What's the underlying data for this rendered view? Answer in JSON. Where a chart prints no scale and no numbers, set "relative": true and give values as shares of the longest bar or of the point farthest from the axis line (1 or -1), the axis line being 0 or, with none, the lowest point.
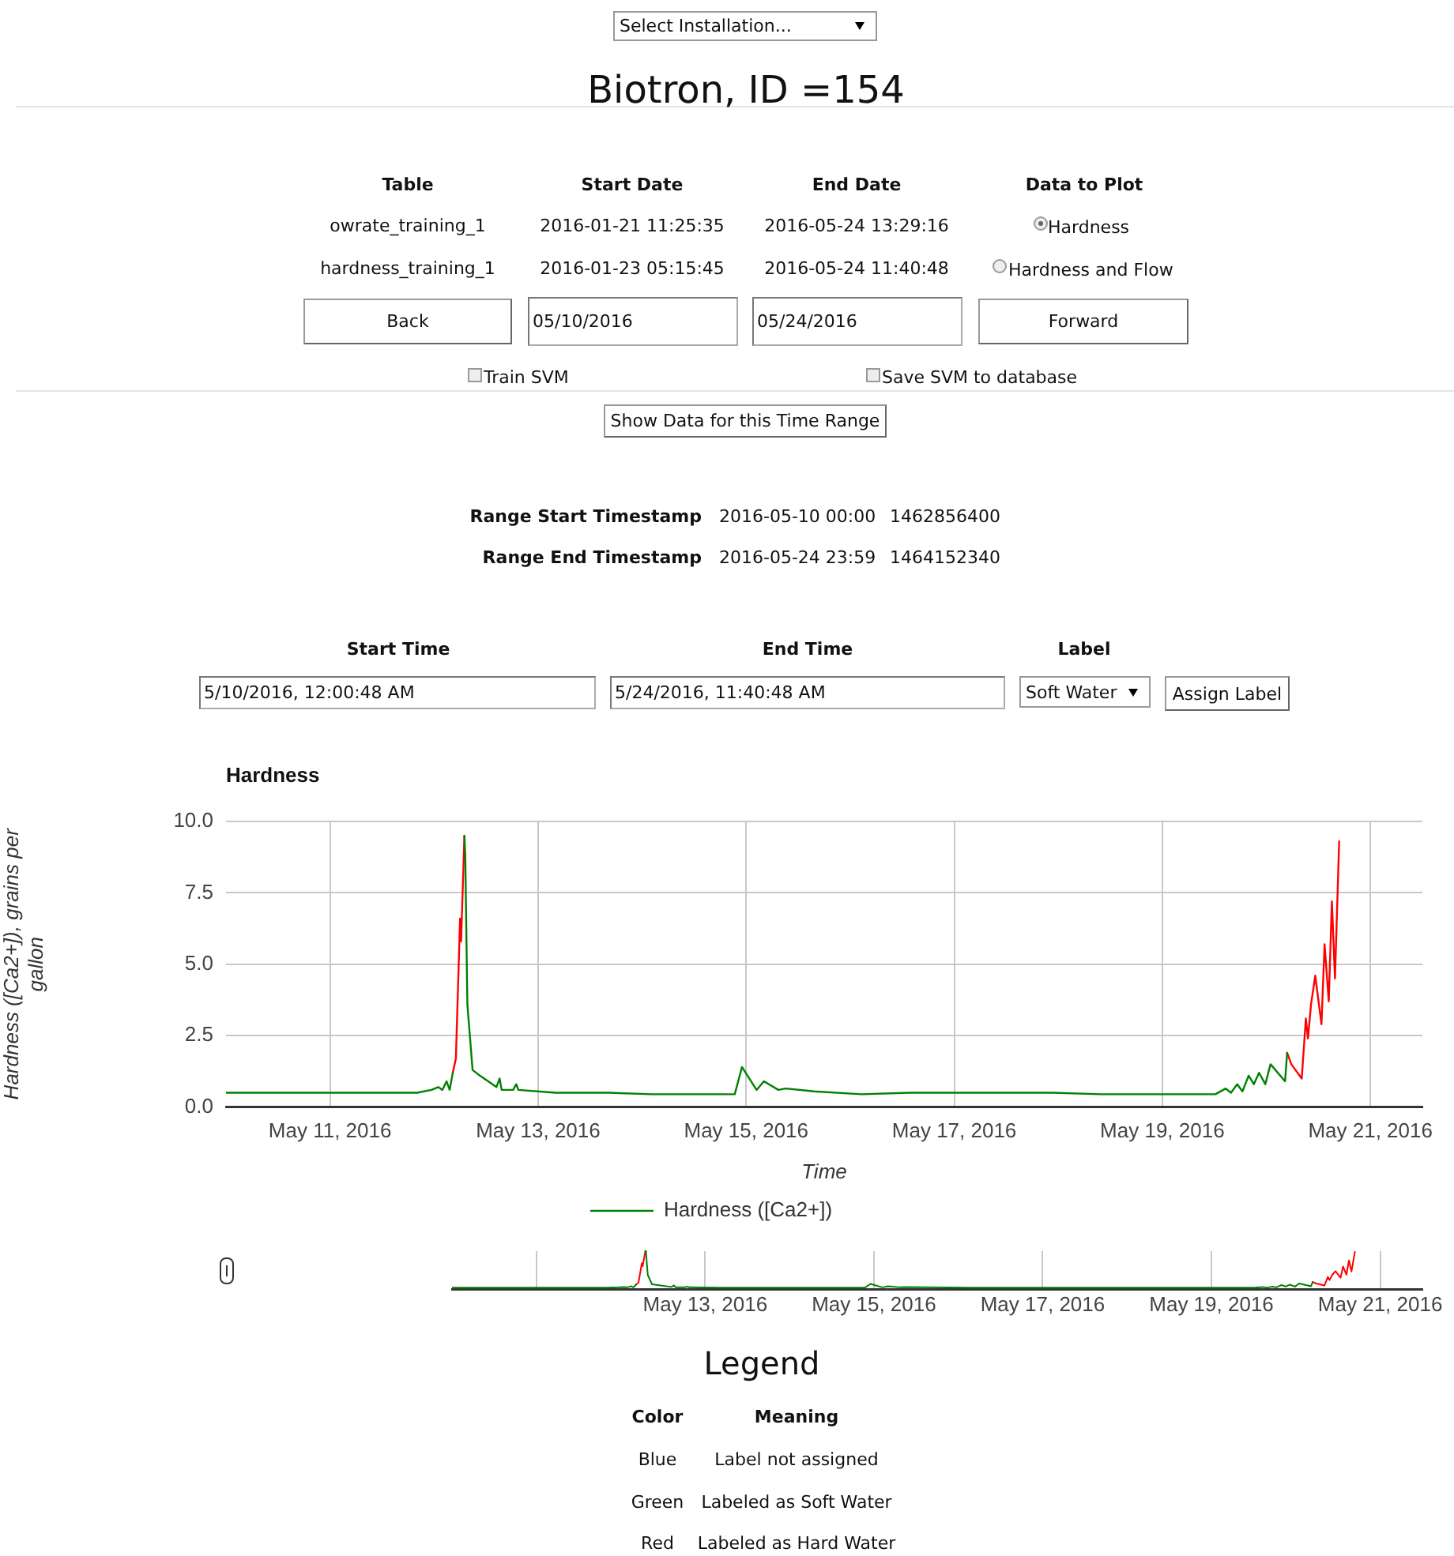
{
  "chart_data": [
    {
      "type": "line",
      "title": "Hardness",
      "xlabel": "Time",
      "ylabel": "Hardness ([Ca2+]), grains per gallon",
      "xlim": [
        "2016-05-10",
        "2016-05-21T12:00"
      ],
      "xticks": [
        {
          "value": "2016-05-11",
          "label": "May 11, 2016"
        },
        {
          "value": "2016-05-13",
          "label": "May 13, 2016"
        },
        {
          "value": "2016-05-15",
          "label": "May 15, 2016"
        },
        {
          "value": "2016-05-17",
          "label": "May 17, 2016"
        },
        {
          "value": "2016-05-19",
          "label": "May 19, 2016"
        },
        {
          "value": "2016-05-21",
          "label": "May 21, 2016"
        }
      ],
      "ylim": [
        0,
        10
      ],
      "yticks": [
        {
          "value": 0,
          "label": "0.0"
        },
        {
          "value": 2.5,
          "label": "2.5"
        },
        {
          "value": 5,
          "label": "5.0"
        },
        {
          "value": 7.5,
          "label": "7.5"
        },
        {
          "value": 10,
          "label": "10.0"
        }
      ],
      "grid": true,
      "legend": "bottom",
      "x": [
        "2016-05-10T00:00",
        "2016-05-11T20:05",
        "2016-05-11T23:24",
        "2016-05-12T00:58",
        "2016-05-12T01:55",
        "2016-05-12T02:53",
        "2016-05-12T03:36",
        "2016-05-12T04:19",
        "2016-05-12T05:02",
        "2016-05-12T06:00",
        "2016-05-12T06:14",
        "2016-05-12T07:00",
        "2016-05-12T07:12",
        "2016-05-12T07:41",
        "2016-05-12T08:53",
        "2016-05-12T10:34",
        "2016-05-12T14:24",
        "2016-05-12T15:07",
        "2016-05-12T15:36",
        "2016-05-12T18:14",
        "2016-05-12T18:58",
        "2016-05-12T19:26",
        "2016-05-13T04:05",
        "2016-05-13T16:19",
        "2016-05-14T02:10",
        "2016-05-14T21:22",
        "2016-05-14T23:02",
        "2016-05-15T02:24",
        "2016-05-15T04:05",
        "2016-05-15T07:26",
        "2016-05-15T09:07",
        "2016-05-15T15:36",
        "2016-05-16T02:38",
        "2016-05-16T13:41",
        "2016-05-17T22:48",
        "2016-05-18T09:50",
        "2016-05-19T01:26",
        "2016-05-19T12:14",
        "2016-05-19T14:38",
        "2016-05-19T15:50",
        "2016-05-19T17:17",
        "2016-05-19T18:29",
        "2016-05-19T19:55",
        "2016-05-19T21:07",
        "2016-05-19T22:19",
        "2016-05-19T23:46",
        "2016-05-20T00:58",
        "2016-05-20T04:19",
        "2016-05-20T04:48",
        "2016-05-20T05:46",
        "2016-05-20T08:10",
        "2016-05-20T09:07",
        "2016-05-20T09:36",
        "2016-05-20T10:19",
        "2016-05-20T11:17",
        "2016-05-20T12:43",
        "2016-05-20T13:26",
        "2016-05-20T14:24",
        "2016-05-20T15:07",
        "2016-05-20T15:50",
        "2016-05-20T16:48"
      ],
      "series": [
        {
          "name": "Hardness ([Ca2+])",
          "color": "#008000",
          "values": [
            0.5,
            0.5,
            0.6,
            0.7,
            0.6,
            0.9,
            0.6,
            1.2,
            null,
            null,
            null,
            9.5,
            8.8,
            3.6,
            1.3,
            1.1,
            0.7,
            1.0,
            0.6,
            0.6,
            0.8,
            0.6,
            0.5,
            0.5,
            0.45,
            0.45,
            1.4,
            0.6,
            0.9,
            0.6,
            0.65,
            0.55,
            0.45,
            0.5,
            0.5,
            0.45,
            0.45,
            0.45,
            0.65,
            0.5,
            0.8,
            0.55,
            1.1,
            0.8,
            1.2,
            0.8,
            1.5,
            0.9,
            1.9,
            null,
            null,
            null,
            null,
            null,
            null,
            null,
            null,
            null,
            null,
            null,
            null
          ]
        },
        {
          "color": "#ff0000",
          "values": [
            null,
            null,
            null,
            null,
            null,
            null,
            null,
            1.2,
            1.7,
            6.6,
            5.8,
            9.5,
            null,
            null,
            null,
            null,
            null,
            null,
            null,
            null,
            null,
            null,
            null,
            null,
            null,
            null,
            null,
            null,
            null,
            null,
            null,
            null,
            null,
            null,
            null,
            null,
            null,
            null,
            null,
            null,
            null,
            null,
            null,
            null,
            null,
            null,
            null,
            null,
            1.9,
            1.5,
            1.0,
            3.1,
            2.4,
            3.6,
            4.6,
            2.9,
            5.7,
            3.7,
            7.2,
            4.5,
            9.3
          ]
        }
      ],
      "annotations": [
        "Select Installation...",
        "Biotron, ID =154",
        "Table",
        "Start Date",
        "End Date",
        "Data to Plot",
        "owrate_training_1",
        "2016-01-21 11:25:35",
        "2016-05-24 13:29:16",
        "Hardness",
        "hardness_training_1",
        "2016-01-23 05:15:45",
        "2016-05-24 11:40:48",
        "Hardness and Flow",
        "Back",
        "05/10/2016",
        "05/24/2016",
        "Forward",
        "Train SVM",
        "Save SVM to database",
        "Show Data for this Time Range",
        "Range Start Timestamp",
        "2016-05-10 00:00",
        "1462856400",
        "Range End Timestamp",
        "2016-05-24 23:59",
        "1464152340",
        "Start Time",
        "End Time",
        "Label",
        "5/10/2016, 12:00:48 AM",
        "5/24/2016, 11:40:48 AM",
        "Soft Water",
        "Assign Label",
        "Legend",
        "Color",
        "Meaning",
        "Blue",
        "Label not assigned",
        "Green",
        "Labeled as Soft Water",
        "Red",
        "Labeled as Hard Water"
      ]
    },
    {
      "type": "line",
      "relative": true,
      "xlim": [
        "2016-05-10",
        "2016-05-21T12:00"
      ],
      "xticks": [
        {
          "value": "2016-05-11",
          "label": null
        },
        {
          "value": "2016-05-13",
          "label": "May 13, 2016"
        },
        {
          "value": "2016-05-15",
          "label": "May 15, 2016"
        },
        {
          "value": "2016-05-17",
          "label": "May 17, 2016"
        },
        {
          "value": "2016-05-19",
          "label": "May 19, 2016"
        },
        {
          "value": "2016-05-21",
          "label": "May 21, 2016"
        }
      ],
      "grid": "x",
      "tick_labels": "x",
      "x": [
        "2016-05-10T00:00",
        "2016-05-11T20:05",
        "2016-05-11T23:24",
        "2016-05-12T00:58",
        "2016-05-12T01:55",
        "2016-05-12T02:53",
        "2016-05-12T03:36",
        "2016-05-12T04:19",
        "2016-05-12T05:02",
        "2016-05-12T06:00",
        "2016-05-12T06:14",
        "2016-05-12T07:00",
        "2016-05-12T07:12",
        "2016-05-12T07:41",
        "2016-05-12T08:53",
        "2016-05-12T10:34",
        "2016-05-12T14:24",
        "2016-05-12T15:07",
        "2016-05-12T15:36",
        "2016-05-12T18:14",
        "2016-05-12T18:58",
        "2016-05-12T19:26",
        "2016-05-13T04:05",
        "2016-05-13T16:19",
        "2016-05-14T02:10",
        "2016-05-14T21:22",
        "2016-05-14T23:02",
        "2016-05-15T02:24",
        "2016-05-15T04:05",
        "2016-05-15T07:26",
        "2016-05-15T09:07",
        "2016-05-15T15:36",
        "2016-05-16T02:38",
        "2016-05-16T13:41",
        "2016-05-17T22:48",
        "2016-05-18T09:50",
        "2016-05-19T01:26",
        "2016-05-19T12:14",
        "2016-05-19T14:38",
        "2016-05-19T15:50",
        "2016-05-19T17:17",
        "2016-05-19T18:29",
        "2016-05-19T19:55",
        "2016-05-19T21:07",
        "2016-05-19T22:19",
        "2016-05-19T23:46",
        "2016-05-20T00:58",
        "2016-05-20T04:19",
        "2016-05-20T04:48",
        "2016-05-20T05:46",
        "2016-05-20T08:10",
        "2016-05-20T09:07",
        "2016-05-20T09:36",
        "2016-05-20T10:19",
        "2016-05-20T11:17",
        "2016-05-20T12:43",
        "2016-05-20T13:26",
        "2016-05-20T14:24",
        "2016-05-20T15:07",
        "2016-05-20T15:50",
        "2016-05-20T16:48"
      ],
      "series": [
        {
          "color": "#008000",
          "values": [
            0.05,
            0.05,
            0.06,
            0.07,
            0.06,
            0.09,
            0.06,
            0.13,
            null,
            null,
            null,
            1,
            0.93,
            0.38,
            0.14,
            0.12,
            0.07,
            0.11,
            0.06,
            0.06,
            0.08,
            0.06,
            0.05,
            0.05,
            0.05,
            0.05,
            0.15,
            0.06,
            0.09,
            0.06,
            0.07,
            0.06,
            0.05,
            0.05,
            0.05,
            0.05,
            0.05,
            0.05,
            0.07,
            0.05,
            0.08,
            0.06,
            0.12,
            0.08,
            0.13,
            0.08,
            0.16,
            0.09,
            0.2,
            null,
            null,
            null,
            null,
            null,
            null,
            null,
            null,
            null,
            null,
            null,
            null
          ]
        },
        {
          "color": "#ff0000",
          "values": [
            null,
            null,
            null,
            null,
            null,
            null,
            null,
            0.13,
            0.18,
            0.69,
            0.61,
            1,
            null,
            null,
            null,
            null,
            null,
            null,
            null,
            null,
            null,
            null,
            null,
            null,
            null,
            null,
            null,
            null,
            null,
            null,
            null,
            null,
            null,
            null,
            null,
            null,
            null,
            null,
            null,
            null,
            null,
            null,
            null,
            null,
            null,
            null,
            null,
            null,
            0.2,
            0.16,
            0.11,
            0.33,
            0.25,
            0.38,
            0.48,
            0.31,
            0.6,
            0.39,
            0.76,
            0.47,
            0.98
          ]
        }
      ]
    }
  ]
}
